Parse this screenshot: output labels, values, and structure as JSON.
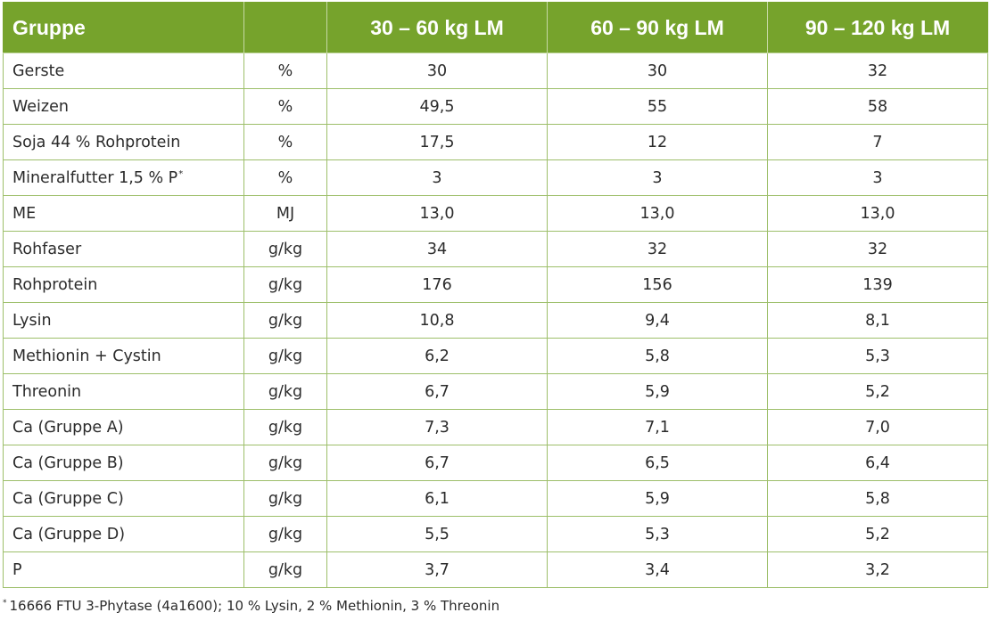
{
  "table": {
    "header": {
      "group_label": "Gruppe",
      "unit_label": "",
      "columns": [
        "30 – 60 kg LM",
        "60 – 90 kg LM",
        "90 – 120 kg LM"
      ]
    },
    "rows": [
      {
        "label": "Gerste",
        "unit": "%",
        "values": [
          "30",
          "30",
          "32"
        ]
      },
      {
        "label": "Weizen",
        "unit": "%",
        "values": [
          "49,5",
          "55",
          "58"
        ]
      },
      {
        "label": "Soja 44 % Rohprotein",
        "unit": "%",
        "values": [
          "17,5",
          "12",
          "7"
        ]
      },
      {
        "label": "Mineralfutter 1,5 % P",
        "label_mark": "*",
        "unit": "%",
        "values": [
          "3",
          "3",
          "3"
        ]
      },
      {
        "label": "ME",
        "unit": "MJ",
        "values": [
          "13,0",
          "13,0",
          "13,0"
        ]
      },
      {
        "label": "Rohfaser",
        "unit": "g/kg",
        "values": [
          "34",
          "32",
          "32"
        ]
      },
      {
        "label": "Rohprotein",
        "unit": "g/kg",
        "values": [
          "176",
          "156",
          "139"
        ]
      },
      {
        "label": "Lysin",
        "unit": "g/kg",
        "values": [
          "10,8",
          "9,4",
          "8,1"
        ]
      },
      {
        "label": "Methionin + Cystin",
        "unit": "g/kg",
        "values": [
          "6,2",
          "5,8",
          "5,3"
        ]
      },
      {
        "label": "Threonin",
        "unit": "g/kg",
        "values": [
          "6,7",
          "5,9",
          "5,2"
        ]
      },
      {
        "label": "Ca (Gruppe A)",
        "unit": "g/kg",
        "values": [
          "7,3",
          "7,1",
          "7,0"
        ]
      },
      {
        "label": "Ca (Gruppe B)",
        "unit": "g/kg",
        "values": [
          "6,7",
          "6,5",
          "6,4"
        ]
      },
      {
        "label": "Ca (Gruppe C)",
        "unit": "g/kg",
        "values": [
          "6,1",
          "5,9",
          "5,8"
        ]
      },
      {
        "label": "Ca (Gruppe D)",
        "unit": "g/kg",
        "values": [
          "5,5",
          "5,3",
          "5,2"
        ]
      },
      {
        "label": "P",
        "unit": "g/kg",
        "values": [
          "3,7",
          "3,4",
          "3,2"
        ]
      }
    ]
  },
  "footnote": {
    "mark": "*",
    "text": "16666 FTU 3-Phytase (4a1600); 10 % Lysin, 2 % Methionin, 3 % Threonin"
  },
  "colors": {
    "header_bg": "#76a32c",
    "header_text": "#ffffff",
    "grid_line": "#9dbf6a",
    "body_text": "#2b2b2b"
  }
}
